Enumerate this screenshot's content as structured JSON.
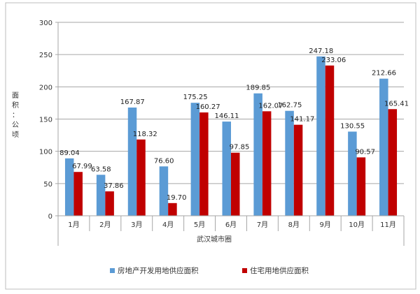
{
  "chart_data": {
    "type": "bar",
    "title": "",
    "ylabel": "面积：公顷",
    "ylabel_chars": [
      "面",
      "积",
      "：",
      "公",
      "顷"
    ],
    "xlabel": "",
    "group_label": "武汉城市圈",
    "ylim": [
      0,
      300
    ],
    "yticks": [
      0,
      50,
      100,
      150,
      200,
      250,
      300
    ],
    "grid": true,
    "legend_position": "bottom",
    "categories": [
      "1月",
      "2月",
      "3月",
      "4月",
      "5月",
      "6月",
      "7月",
      "8月",
      "9月",
      "10月",
      "11月"
    ],
    "series": [
      {
        "name": "房地产开发用地供应面积",
        "color": "#5b9bd5",
        "values": [
          89.04,
          63.58,
          167.87,
          76.6,
          175.25,
          146.11,
          189.85,
          162.75,
          247.18,
          130.55,
          212.66
        ],
        "labels": [
          "89.04",
          "63.58",
          "167.87",
          "76.60",
          "175.25",
          "146.11",
          "189.85",
          "162.75",
          "247.18",
          "130.55",
          "212.66"
        ]
      },
      {
        "name": "住宅用地供应面积",
        "color": "#c00000",
        "values": [
          67.99,
          37.86,
          118.32,
          19.7,
          160.27,
          97.85,
          162.07,
          141.17,
          233.06,
          90.57,
          165.41
        ],
        "labels": [
          "67.99",
          "37.86",
          "118.32",
          "19.70",
          "160.27",
          "97.85",
          "162.07",
          "141.17",
          "233.06",
          "90.57",
          "165.41"
        ]
      }
    ]
  }
}
